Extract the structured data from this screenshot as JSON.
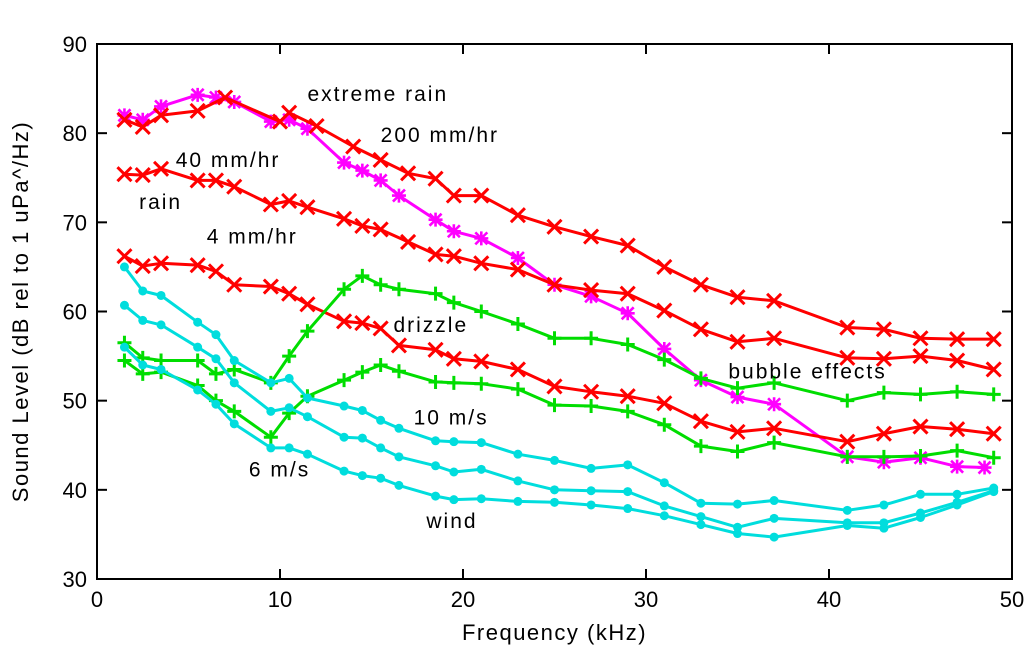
{
  "chart_data": {
    "type": "line",
    "xlabel": "Frequency (kHz)",
    "ylabel": "Sound Level (dB rel to 1 uPa^/Hz)",
    "xlim": [
      0,
      50
    ],
    "ylim": [
      30,
      90
    ],
    "xticks": [
      0,
      10,
      20,
      30,
      40,
      50
    ],
    "yticks": [
      30,
      40,
      50,
      60,
      70,
      80,
      90
    ],
    "grid": false,
    "legend": "none",
    "series": [
      {
        "color": "#ff00ff",
        "marker": "star",
        "x": [
          1.5,
          2.5,
          3.5,
          5.5,
          6.5,
          7.5,
          9.5,
          10.5,
          11.5,
          13.5,
          14.5,
          15.5,
          16.5,
          18.5,
          19.5,
          21,
          23,
          25,
          27,
          29,
          31,
          33,
          35,
          37,
          41,
          43,
          45,
          47,
          48.5
        ],
        "y": [
          82.0,
          81.5,
          83.0,
          84.3,
          84.0,
          83.5,
          81.3,
          81.5,
          80.5,
          76.7,
          75.8,
          74.7,
          73.0,
          70.3,
          69.0,
          68.2,
          66.0,
          63.0,
          61.7,
          59.8,
          55.8,
          52.3,
          50.4,
          49.6,
          43.7,
          43.1,
          43.6,
          42.6,
          42.5
        ]
      },
      {
        "color": "#ff0000",
        "marker": "x",
        "x": [
          1.5,
          2.5,
          3.5,
          5.5,
          7,
          10,
          10.5,
          12,
          14,
          15.5,
          17,
          18.5,
          19.5,
          21,
          23,
          25,
          27,
          29,
          31,
          33,
          35,
          37,
          41,
          43,
          45,
          47,
          49
        ],
        "y": [
          81.5,
          80.7,
          82.0,
          82.5,
          84.0,
          81.3,
          82.3,
          80.8,
          78.5,
          77.0,
          75.5,
          74.9,
          73.0,
          73.0,
          70.8,
          69.5,
          68.4,
          67.4,
          65.0,
          63.0,
          61.6,
          61.2,
          58.2,
          58.0,
          57.0,
          56.9,
          56.9
        ]
      },
      {
        "color": "#ff0000",
        "marker": "x",
        "x": [
          1.5,
          2.5,
          3.5,
          5.5,
          6.5,
          7.5,
          9.5,
          10.5,
          11.5,
          13.5,
          14.5,
          15.5,
          17,
          18.5,
          19.5,
          21,
          23,
          25,
          27,
          29,
          31,
          33,
          35,
          37,
          41,
          43,
          45,
          47,
          49
        ],
        "y": [
          75.4,
          75.3,
          76.0,
          74.7,
          74.7,
          74.0,
          72.0,
          72.4,
          71.7,
          70.4,
          69.6,
          69.2,
          67.8,
          66.4,
          66.2,
          65.4,
          64.7,
          63.0,
          62.4,
          62.0,
          60.1,
          58.0,
          56.6,
          57.0,
          54.8,
          54.7,
          55.0,
          54.5,
          53.5
        ]
      },
      {
        "color": "#ff0000",
        "marker": "x",
        "x": [
          1.5,
          2.5,
          3.5,
          5.5,
          6.5,
          7.5,
          9.5,
          10.5,
          11.5,
          13.5,
          14.5,
          15.5,
          16.5,
          18.5,
          19.5,
          21,
          23,
          25,
          27,
          29,
          31,
          33,
          35,
          37,
          41,
          43,
          45,
          47,
          49
        ],
        "y": [
          66.2,
          65.1,
          65.4,
          65.2,
          64.5,
          63.0,
          62.8,
          62.0,
          60.8,
          58.9,
          58.7,
          58.1,
          56.2,
          55.7,
          54.7,
          54.4,
          53.5,
          51.6,
          51.0,
          50.5,
          49.7,
          47.7,
          46.5,
          46.9,
          45.4,
          46.3,
          47.1,
          46.8,
          46.3
        ]
      },
      {
        "color": "#00dd00",
        "marker": "plus",
        "x": [
          1.5,
          2.5,
          3.5,
          5.5,
          6.5,
          7.5,
          9.5,
          10.5,
          11.5,
          13.5,
          14.5,
          15.5,
          16.5,
          18.5,
          19.5,
          21,
          23,
          25,
          27,
          29,
          31,
          33,
          35,
          37,
          41,
          43,
          45,
          47,
          49
        ],
        "y": [
          56.5,
          54.8,
          54.5,
          54.5,
          53.0,
          53.5,
          52.0,
          55.0,
          57.8,
          62.5,
          64.0,
          63.0,
          62.5,
          62.0,
          61.0,
          60.0,
          58.6,
          57.0,
          57.0,
          56.3,
          54.6,
          52.5,
          51.4,
          52.0,
          50.0,
          50.9,
          50.7,
          51.0,
          50.7
        ]
      },
      {
        "color": "#00dd00",
        "marker": "plus",
        "x": [
          1.5,
          2.5,
          3.5,
          5.5,
          6.5,
          7.5,
          9.5,
          10.5,
          11.5,
          13.5,
          14.5,
          15.5,
          16.5,
          18.5,
          19.5,
          21,
          23,
          25,
          27,
          29,
          31,
          33,
          35,
          37,
          41,
          43,
          45,
          47,
          49
        ],
        "y": [
          54.5,
          53.0,
          53.2,
          51.7,
          50.0,
          48.8,
          45.9,
          48.6,
          50.5,
          52.3,
          53.2,
          54.0,
          53.3,
          52.1,
          52.0,
          51.9,
          51.3,
          49.5,
          49.4,
          48.8,
          47.3,
          44.9,
          44.3,
          45.3,
          43.7,
          43.7,
          43.8,
          44.4,
          43.6
        ]
      },
      {
        "color": "#00dddd",
        "marker": "dot",
        "x": [
          1.5,
          2.5,
          3.5,
          5.5,
          6.5,
          7.5,
          9.5,
          10.5,
          11.5,
          13.5,
          14.5,
          15.5,
          16.5,
          18.5,
          19.5,
          21,
          23,
          25,
          27,
          29,
          31,
          33,
          35,
          37,
          41,
          43,
          45,
          47,
          49
        ],
        "y": [
          65.0,
          62.3,
          61.8,
          58.8,
          57.4,
          54.5,
          52.0,
          52.5,
          50.3,
          49.4,
          48.9,
          47.8,
          46.9,
          45.5,
          45.4,
          45.3,
          44.0,
          43.3,
          42.4,
          42.8,
          40.8,
          38.5,
          38.4,
          38.8,
          37.7,
          38.3,
          39.5,
          39.5,
          40.2
        ]
      },
      {
        "color": "#00dddd",
        "marker": "dot",
        "x": [
          1.5,
          2.5,
          3.5,
          5.5,
          6.5,
          7.5,
          9.5,
          10.5,
          11.5,
          13.5,
          14.5,
          15.5,
          16.5,
          18.5,
          19.5,
          21,
          23,
          25,
          27,
          29,
          31,
          33,
          35,
          37,
          41,
          43,
          45,
          47,
          49
        ],
        "y": [
          60.7,
          59.0,
          58.5,
          56.0,
          54.7,
          52.0,
          48.8,
          49.2,
          48.2,
          45.9,
          45.8,
          44.7,
          43.7,
          42.7,
          42.0,
          42.3,
          41.0,
          40.0,
          39.9,
          39.8,
          38.2,
          37.0,
          35.8,
          36.8,
          36.3,
          36.3,
          37.4,
          38.6,
          39.9
        ]
      },
      {
        "color": "#00dddd",
        "marker": "dot",
        "x": [
          1.5,
          2.5,
          3.5,
          5.5,
          6.5,
          7.5,
          9.5,
          10.5,
          11.5,
          13.5,
          14.5,
          15.5,
          16.5,
          18.5,
          19.5,
          21,
          23,
          25,
          27,
          29,
          31,
          33,
          35,
          37,
          41,
          43,
          45,
          47,
          49
        ],
        "y": [
          56.0,
          54.0,
          53.5,
          51.2,
          49.6,
          47.4,
          44.7,
          44.7,
          44.0,
          42.1,
          41.6,
          41.3,
          40.5,
          39.3,
          38.9,
          39.0,
          38.7,
          38.6,
          38.3,
          37.9,
          37.1,
          36.1,
          35.1,
          34.7,
          36.0,
          35.7,
          36.9,
          38.3,
          39.8
        ]
      }
    ],
    "annotations": [
      {
        "text": "extreme rain",
        "x": 11.5,
        "y": 83.6
      },
      {
        "text": "200 mm/hr",
        "x": 15.5,
        "y": 79.0
      },
      {
        "text": "40 mm/hr",
        "x": 4.3,
        "y": 76.2
      },
      {
        "text": "rain",
        "x": 2.3,
        "y": 71.5
      },
      {
        "text": "4 mm/hr",
        "x": 6.0,
        "y": 67.6
      },
      {
        "text": "drizzle",
        "x": 16.2,
        "y": 57.7
      },
      {
        "text": "bubble effects",
        "x": 34.5,
        "y": 52.5
      },
      {
        "text": "10 m/s",
        "x": 17.3,
        "y": 47.3
      },
      {
        "text": "6 m/s",
        "x": 8.3,
        "y": 41.5
      },
      {
        "text": "wind",
        "x": 18.0,
        "y": 35.7
      }
    ]
  }
}
